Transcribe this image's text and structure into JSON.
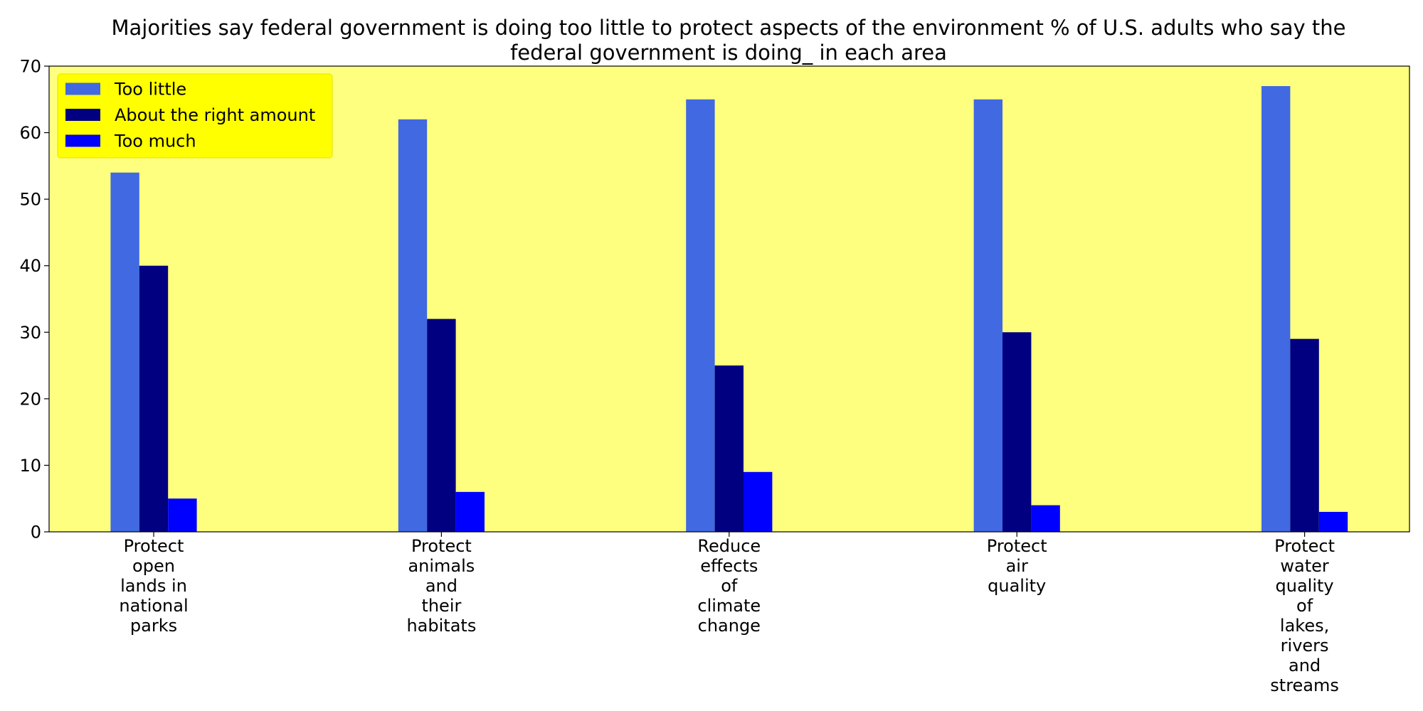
{
  "chart_data": {
    "type": "bar",
    "title_lines": [
      "Majorities say federal government is doing too little to protect aspects of the environment % of U.S. adults who say the",
      "federal government is doing_ in each area"
    ],
    "categories": [
      [
        "Protect",
        "open",
        "lands in",
        "national",
        "parks"
      ],
      [
        "Protect",
        "animals",
        "and",
        "their",
        "habitats"
      ],
      [
        "Reduce",
        "effects",
        "of",
        "climate",
        "change"
      ],
      [
        "Protect",
        "air",
        "quality"
      ],
      [
        "Protect",
        "water",
        "quality",
        "of",
        "lakes,",
        "rivers",
        "and",
        "streams"
      ]
    ],
    "series": [
      {
        "name": "Too little",
        "values": [
          54,
          62,
          65,
          65,
          67
        ],
        "color": "#4169E1"
      },
      {
        "name": "About the right amount",
        "values": [
          40,
          32,
          25,
          30,
          29
        ],
        "color": "#000080"
      },
      {
        "name": "Too much",
        "values": [
          5,
          6,
          9,
          4,
          3
        ],
        "color": "#0000FF"
      }
    ],
    "ylim": [
      0,
      70
    ],
    "yticks": [
      0,
      10,
      20,
      30,
      40,
      50,
      60,
      70
    ],
    "grid": false,
    "legend_position": "top-left",
    "plot_background": "#FFFF7F",
    "legend_background": "#FFFF00"
  }
}
